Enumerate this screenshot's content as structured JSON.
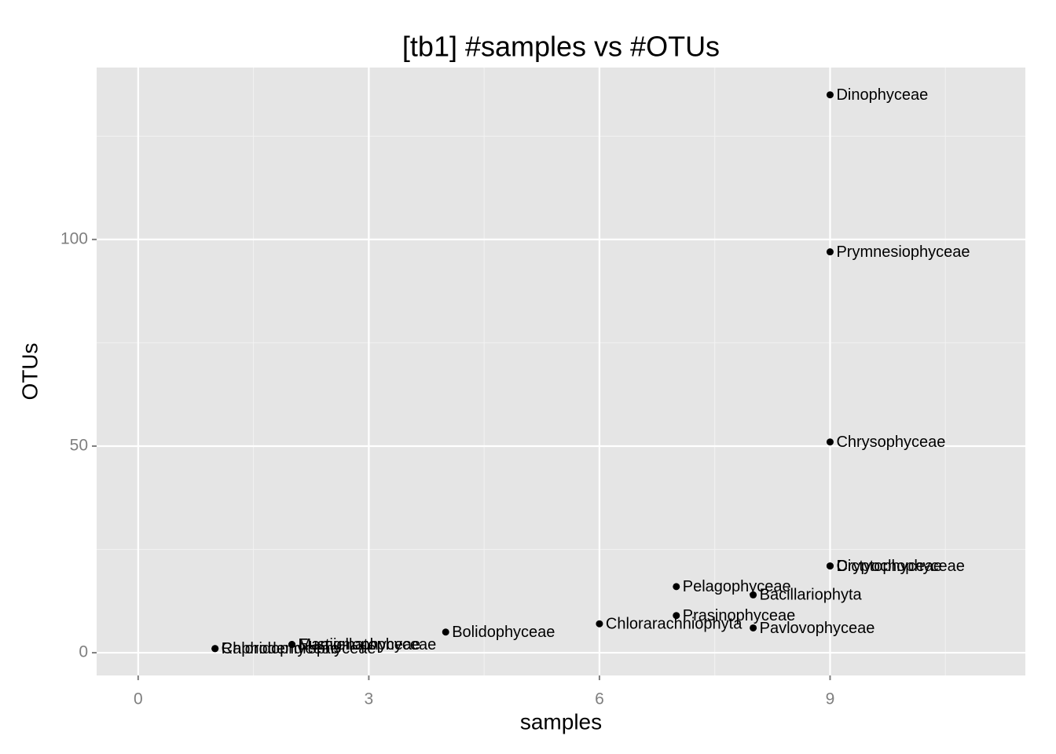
{
  "chart_data": {
    "type": "scatter",
    "title": "[tb1] #samples vs #OTUs",
    "x_label": "samples",
    "y_label": "OTUs",
    "x": [
      9,
      9,
      9,
      9,
      9,
      7,
      8,
      7,
      6,
      8,
      4,
      2,
      2,
      1,
      1
    ],
    "values": [
      135,
      97,
      51,
      21,
      21,
      16,
      14,
      9,
      7,
      6,
      5,
      2,
      2,
      1,
      1
    ],
    "labels": [
      "Dinophyceae",
      "Prymnesiophyceae",
      "Chrysophyceae",
      "Dictyochophyceae",
      "Cryptophyceae",
      "Pelagophyceae",
      "Bacillariophyta",
      "Prasinophyceae",
      "Chlorarachniophyta",
      "Pavlovophyceae",
      "Bolidophyceae",
      "Mamiellophyceae",
      "Eustigmatophyceae",
      "Raphidophyceae",
      "Chlorodendrophyceae"
    ],
    "color": "#000000",
    "xlim": [
      -0.54,
      11.54
    ],
    "xticks": [
      0,
      3,
      6,
      9
    ],
    "ylim": [
      -5.5,
      141.6
    ],
    "yticks": [
      0,
      50,
      100
    ],
    "grid": true
  }
}
